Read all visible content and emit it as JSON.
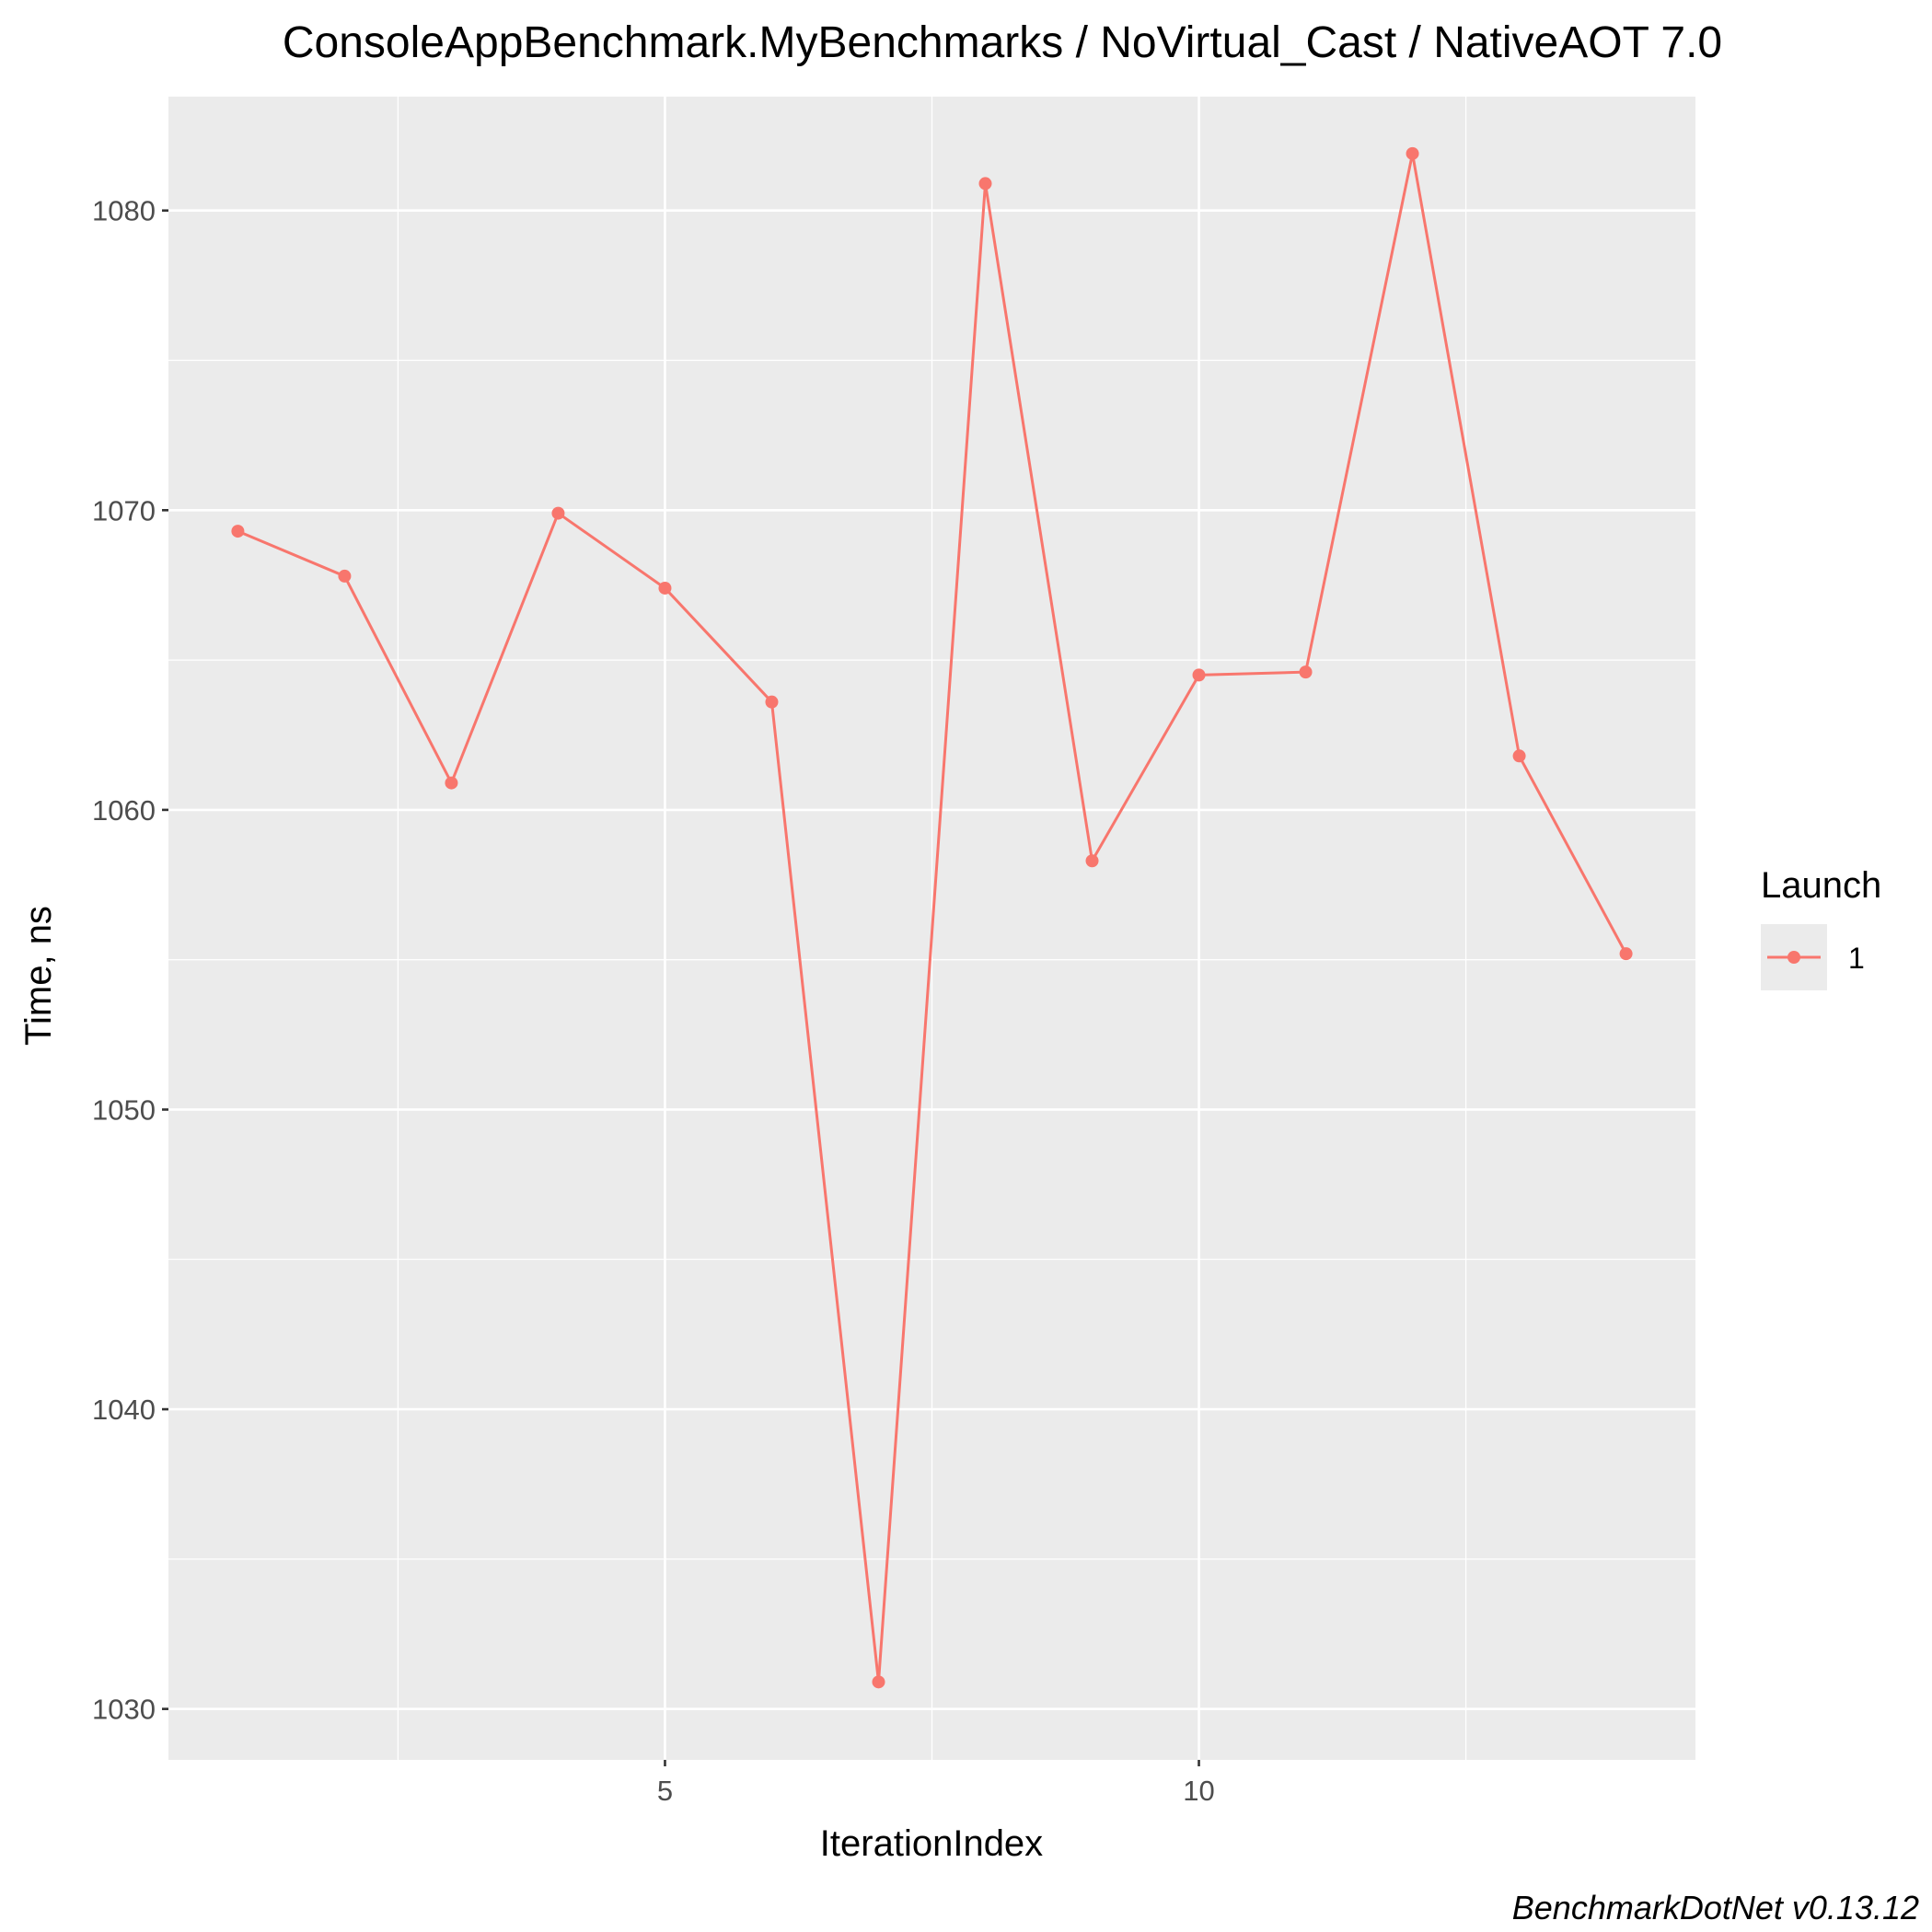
{
  "chart_data": {
    "type": "line",
    "title": "ConsoleAppBenchmark.MyBenchmarks / NoVirtual_Cast / NativeAOT 7.0",
    "xlabel": "IterationIndex",
    "ylabel": "Time, ns",
    "xlim": [
      0.35,
      14.65
    ],
    "ylim": [
      1028.3,
      1083.8
    ],
    "x_ticks": [
      5,
      10
    ],
    "x_tick_labels": [
      "5",
      "10"
    ],
    "x_minor_ticks": [
      2.5,
      7.5,
      12.5
    ],
    "y_ticks": [
      1030,
      1040,
      1050,
      1060,
      1070,
      1080
    ],
    "y_tick_labels": [
      "1030",
      "1040",
      "1050",
      "1060",
      "1070",
      "1080"
    ],
    "y_minor_ticks": [
      1035,
      1045,
      1055,
      1065,
      1075
    ],
    "grid": true,
    "legend_position": "right",
    "legend_title": "Launch",
    "colors": {
      "panel_background": "#ebebeb",
      "grid": "#ffffff",
      "series": "#f8766d",
      "tick_text": "#4d4d4d",
      "tick_mark": "#333333"
    },
    "series": [
      {
        "name": "1",
        "x": [
          1,
          2,
          3,
          4,
          5,
          6,
          7,
          8,
          9,
          10,
          11,
          12,
          13,
          14
        ],
        "values": [
          1069.3,
          1067.8,
          1060.9,
          1069.9,
          1067.4,
          1063.6,
          1030.9,
          1080.9,
          1058.3,
          1064.5,
          1064.6,
          1081.9,
          1061.8,
          1055.2
        ]
      }
    ]
  },
  "caption": "BenchmarkDotNet v0.13.12"
}
